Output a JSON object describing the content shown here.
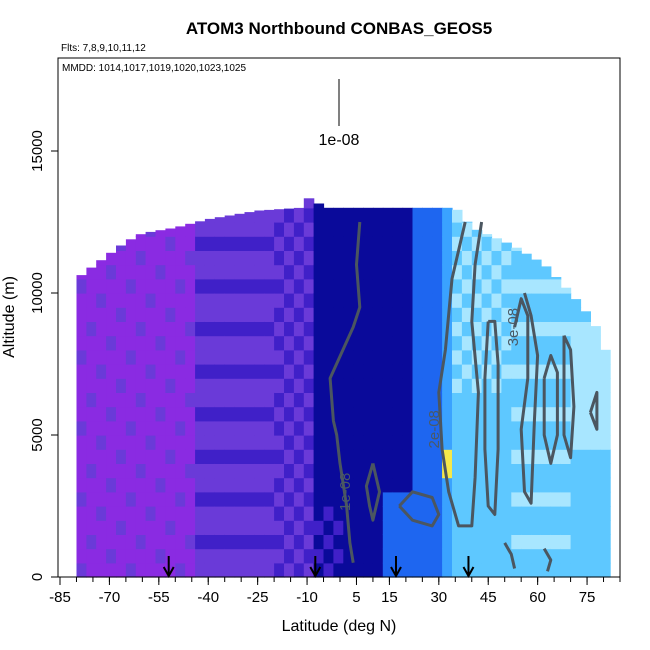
{
  "chart_data": {
    "type": "heatmap",
    "title": "ATOM3 Northbound CONBAS_GEOS5",
    "flights_text": "Flts: 7,8,9,10,11,12",
    "dates_text": "MMDD: 1014,1017,1019,1020,1023,1025",
    "xlabel": "Latitude (deg N)",
    "ylabel": "Altitude (m)",
    "xlim": [
      -85,
      85
    ],
    "ylim": [
      0,
      17500
    ],
    "x_ticks": [
      -85,
      -70,
      -55,
      -40,
      -25,
      -10,
      5,
      15,
      30,
      45,
      60,
      75
    ],
    "y_ticks": [
      0,
      5000,
      10000,
      15000
    ],
    "legend_contour_value": "1e-08",
    "contour_labels": [
      {
        "text": "1e-08",
        "lat": 3,
        "alt": 3000
      },
      {
        "text": "2e-08",
        "lat": 30,
        "alt": 5200
      },
      {
        "text": "3e-08",
        "lat": 54,
        "alt": 8800
      }
    ],
    "arrow_latitudes": [
      -52,
      -7.5,
      17,
      39
    ],
    "colors": {
      "purple": "#8a2be2",
      "violet": "#6a3ad8",
      "indigo": "#4020c8",
      "navy": "#0a0a9a",
      "blue": "#1e66f0",
      "dodgerblue": "#3aa2ff",
      "skyblue": "#5ec8ff",
      "lightblue": "#a8e6ff",
      "yellow": "#f5e84a",
      "contour": "#4b5660"
    }
  }
}
